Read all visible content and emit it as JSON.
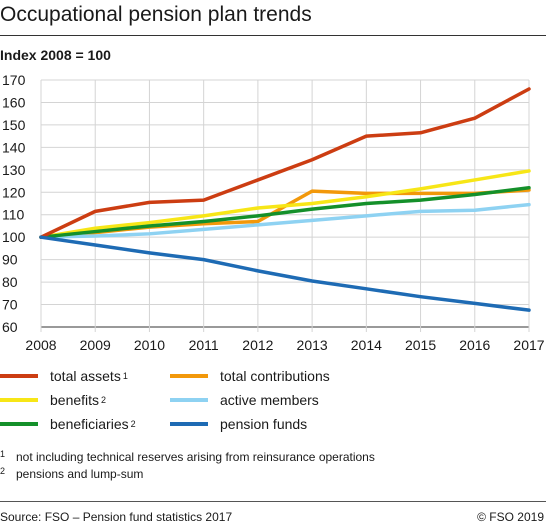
{
  "title": "Occupational pension plan trends",
  "subtitle": "Index 2008 = 100",
  "legend": [
    {
      "label": "total assets",
      "note": "1",
      "color": "#cc3d12"
    },
    {
      "label": "total contributions",
      "note": "",
      "color": "#f2980a"
    },
    {
      "label": "benefits",
      "note": "2",
      "color": "#f7e617"
    },
    {
      "label": "active members",
      "note": "",
      "color": "#8ed2f2"
    },
    {
      "label": "beneficiaries",
      "note": "2",
      "color": "#14902a"
    },
    {
      "label": "pension funds",
      "note": "",
      "color": "#1e6bb4"
    }
  ],
  "notes": [
    {
      "marker": "1",
      "text": "not including technical reserves arising from reinsurance operations"
    },
    {
      "marker": "2",
      "text": "pensions and lump-sum"
    }
  ],
  "footer": {
    "source": "Source: FSO – Pension fund statistics 2017",
    "copyright": "© FSO 2019"
  },
  "chart_data": {
    "type": "line",
    "x": [
      2008,
      2009,
      2010,
      2011,
      2012,
      2013,
      2014,
      2015,
      2016,
      2017
    ],
    "ylim": [
      60,
      170
    ],
    "yticks": [
      60,
      70,
      80,
      90,
      100,
      110,
      120,
      130,
      140,
      150,
      160,
      170
    ],
    "grid": true,
    "series": [
      {
        "name": "total contributions",
        "color": "#f2980a",
        "values": [
          100,
          102,
          104.5,
          106,
          107,
          120.5,
          119.5,
          119.5,
          119.5,
          121
        ]
      },
      {
        "name": "active members",
        "color": "#8ed2f2",
        "values": [
          100,
          100.5,
          101.5,
          103.5,
          105.5,
          107.5,
          109.5,
          111.5,
          112,
          114.5
        ]
      },
      {
        "name": "benefits",
        "color": "#f7e617",
        "values": [
          100,
          104,
          106.5,
          109.5,
          113,
          115,
          118,
          121.5,
          125.5,
          129.5
        ]
      },
      {
        "name": "beneficiaries",
        "color": "#14902a",
        "values": [
          100,
          102.5,
          105,
          107,
          109.5,
          112.5,
          115,
          116.5,
          119,
          122
        ]
      },
      {
        "name": "total assets",
        "color": "#cc3d12",
        "values": [
          100,
          111.5,
          115.5,
          116.5,
          125.5,
          134.5,
          145,
          146.5,
          153,
          166
        ]
      },
      {
        "name": "pension funds",
        "color": "#1e6bb4",
        "values": [
          100,
          96.5,
          93,
          90,
          85,
          80.5,
          77,
          73.5,
          70.5,
          67.5
        ]
      }
    ]
  }
}
